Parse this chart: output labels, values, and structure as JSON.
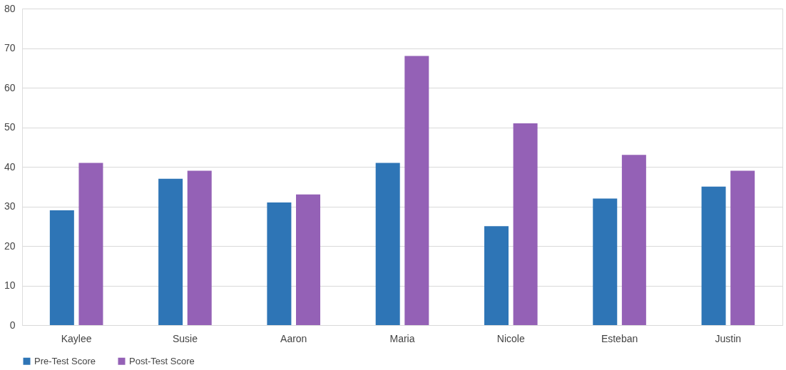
{
  "chart_data": {
    "type": "bar",
    "categories": [
      "Kaylee",
      "Susie",
      "Aaron",
      "Maria",
      "Nicole",
      "Esteban",
      "Justin"
    ],
    "series": [
      {
        "name": "Pre-Test Score",
        "color": "#2e75b6",
        "values": [
          29,
          37,
          31,
          41,
          25,
          32,
          35
        ]
      },
      {
        "name": "Post-Test Score",
        "color": "#9461b6",
        "values": [
          41,
          39,
          33,
          68,
          51,
          43,
          39
        ]
      }
    ],
    "ylim": [
      0,
      80
    ],
    "yticks": [
      0,
      10,
      20,
      30,
      40,
      50,
      60,
      70,
      80
    ],
    "grid": "y",
    "legend": "bottom"
  }
}
